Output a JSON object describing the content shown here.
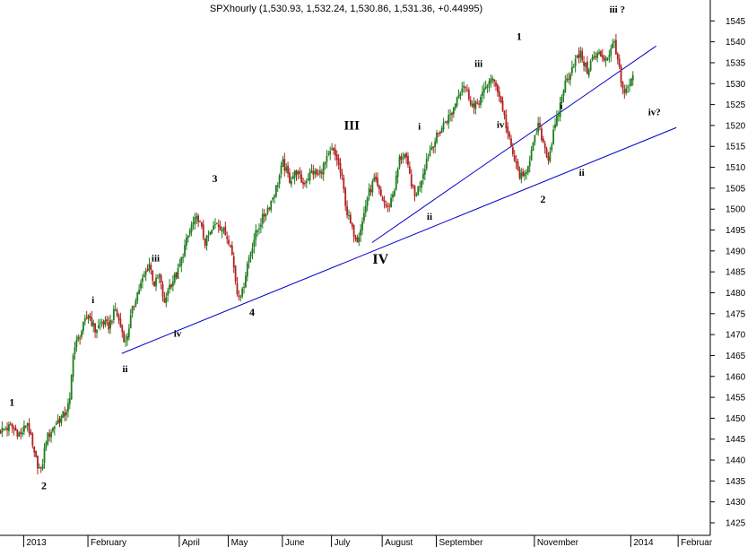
{
  "chart_data": {
    "type": "candlestick",
    "title": "SPXhourly (1,530.93, 1,532.24, 1,530.86, 1,531.36, +0.44995)",
    "ylim": [
      1422,
      1550
    ],
    "y_ticks": [
      1425,
      1430,
      1435,
      1440,
      1445,
      1450,
      1455,
      1460,
      1465,
      1470,
      1475,
      1480,
      1485,
      1490,
      1495,
      1500,
      1505,
      1510,
      1515,
      1520,
      1525,
      1530,
      1535,
      1540,
      1545
    ],
    "x_index_range": [
      0,
      420
    ],
    "x_labels": [
      {
        "t": 14,
        "label": "2013"
      },
      {
        "t": 52,
        "label": "February"
      },
      {
        "t": 106,
        "label": "April"
      },
      {
        "t": 135,
        "label": "May"
      },
      {
        "t": 167,
        "label": "June"
      },
      {
        "t": 196,
        "label": "July"
      },
      {
        "t": 226,
        "label": "August"
      },
      {
        "t": 258,
        "label": "September"
      },
      {
        "t": 316,
        "label": "November"
      },
      {
        "t": 373,
        "label": "2014"
      },
      {
        "t": 401,
        "label": "Februar"
      }
    ],
    "up_color": "#1e7d1e",
    "down_color": "#b22222",
    "trendline_color": "#0000cc",
    "path": [
      [
        0,
        1447
      ],
      [
        6,
        1448
      ],
      [
        12,
        1446
      ],
      [
        16,
        1449
      ],
      [
        20,
        1441
      ],
      [
        24,
        1437
      ],
      [
        27,
        1445
      ],
      [
        33,
        1449
      ],
      [
        38,
        1451
      ],
      [
        41,
        1454
      ],
      [
        43,
        1466
      ],
      [
        47,
        1470
      ],
      [
        52,
        1475
      ],
      [
        56,
        1471
      ],
      [
        60,
        1473
      ],
      [
        64,
        1472
      ],
      [
        68,
        1476
      ],
      [
        71,
        1472
      ],
      [
        74,
        1468
      ],
      [
        77,
        1474
      ],
      [
        80,
        1479
      ],
      [
        84,
        1483
      ],
      [
        88,
        1487
      ],
      [
        91,
        1482
      ],
      [
        94,
        1484
      ],
      [
        97,
        1477
      ],
      [
        99,
        1481
      ],
      [
        102,
        1483
      ],
      [
        105,
        1485
      ],
      [
        109,
        1491
      ],
      [
        113,
        1496
      ],
      [
        117,
        1498
      ],
      [
        121,
        1492
      ],
      [
        124,
        1494
      ],
      [
        128,
        1497
      ],
      [
        133,
        1494
      ],
      [
        136,
        1492
      ],
      [
        140,
        1480
      ],
      [
        143,
        1480
      ],
      [
        146,
        1487
      ],
      [
        150,
        1493
      ],
      [
        154,
        1497
      ],
      [
        159,
        1501
      ],
      [
        163,
        1505
      ],
      [
        167,
        1511
      ],
      [
        171,
        1507
      ],
      [
        175,
        1509
      ],
      [
        179,
        1506
      ],
      [
        184,
        1509
      ],
      [
        188,
        1508
      ],
      [
        192,
        1511
      ],
      [
        196,
        1514
      ],
      [
        199,
        1512
      ],
      [
        202,
        1507
      ],
      [
        205,
        1499
      ],
      [
        208,
        1495
      ],
      [
        211,
        1493
      ],
      [
        214,
        1497
      ],
      [
        217,
        1503
      ],
      [
        221,
        1507
      ],
      [
        225,
        1503
      ],
      [
        229,
        1500
      ],
      [
        233,
        1505
      ],
      [
        236,
        1512
      ],
      [
        239,
        1513
      ],
      [
        242,
        1508
      ],
      [
        245,
        1503
      ],
      [
        248,
        1506
      ],
      [
        252,
        1512
      ],
      [
        255,
        1515
      ],
      [
        259,
        1518
      ],
      [
        263,
        1521
      ],
      [
        267,
        1523
      ],
      [
        271,
        1528
      ],
      [
        274,
        1530
      ],
      [
        277,
        1527
      ],
      [
        280,
        1524
      ],
      [
        283,
        1526
      ],
      [
        286,
        1528
      ],
      [
        289,
        1531
      ],
      [
        293,
        1530
      ],
      [
        297,
        1524
      ],
      [
        300,
        1518
      ],
      [
        303,
        1513
      ],
      [
        306,
        1509
      ],
      [
        309,
        1507
      ],
      [
        312,
        1511
      ],
      [
        315,
        1515
      ],
      [
        318,
        1520
      ],
      [
        321,
        1516
      ],
      [
        324,
        1512
      ],
      [
        327,
        1518
      ],
      [
        330,
        1523
      ],
      [
        333,
        1529
      ],
      [
        336,
        1532
      ],
      [
        339,
        1535
      ],
      [
        343,
        1537
      ],
      [
        347,
        1533
      ],
      [
        350,
        1536
      ],
      [
        354,
        1537
      ],
      [
        358,
        1536
      ],
      [
        361,
        1538
      ],
      [
        363,
        1540
      ],
      [
        365,
        1536
      ],
      [
        367,
        1530
      ],
      [
        369,
        1527
      ],
      [
        371,
        1529
      ],
      [
        374,
        1531
      ]
    ],
    "trendlines": [
      {
        "from": [
          72,
          1465.5
        ],
        "to": [
          400,
          1519.5
        ]
      },
      {
        "from": [
          220,
          1492
        ],
        "to": [
          388,
          1539
        ]
      }
    ],
    "annotations": [
      {
        "text": "1",
        "x": 7,
        "y": 1453,
        "size": 12
      },
      {
        "text": "2",
        "x": 26,
        "y": 1433,
        "size": 12
      },
      {
        "text": "i",
        "x": 55,
        "y": 1477.5,
        "size": 11
      },
      {
        "text": "ii",
        "x": 74,
        "y": 1461,
        "size": 11
      },
      {
        "text": "iii",
        "x": 92,
        "y": 1487.5,
        "size": 11
      },
      {
        "text": "iv",
        "x": 105,
        "y": 1469.5,
        "size": 11
      },
      {
        "text": "3",
        "x": 127,
        "y": 1506.5,
        "size": 12
      },
      {
        "text": "4",
        "x": 149,
        "y": 1474.5,
        "size": 12
      },
      {
        "text": "III",
        "x": 208,
        "y": 1519,
        "size": 15
      },
      {
        "text": "IV",
        "x": 225,
        "y": 1487,
        "size": 16
      },
      {
        "text": "i",
        "x": 248,
        "y": 1519,
        "size": 11
      },
      {
        "text": "ii",
        "x": 254,
        "y": 1497.5,
        "size": 11
      },
      {
        "text": "iii",
        "x": 283,
        "y": 1534,
        "size": 11
      },
      {
        "text": "iv",
        "x": 296,
        "y": 1519.5,
        "size": 11
      },
      {
        "text": "1",
        "x": 307,
        "y": 1540.5,
        "size": 12
      },
      {
        "text": "2",
        "x": 321,
        "y": 1501.5,
        "size": 12
      },
      {
        "text": "i",
        "x": 332,
        "y": 1524,
        "size": 11
      },
      {
        "text": "ii",
        "x": 344,
        "y": 1508,
        "size": 11
      },
      {
        "text": "iii ?",
        "x": 365,
        "y": 1547,
        "size": 11
      },
      {
        "text": "iv?",
        "x": 387,
        "y": 1522.5,
        "size": 11
      }
    ]
  }
}
